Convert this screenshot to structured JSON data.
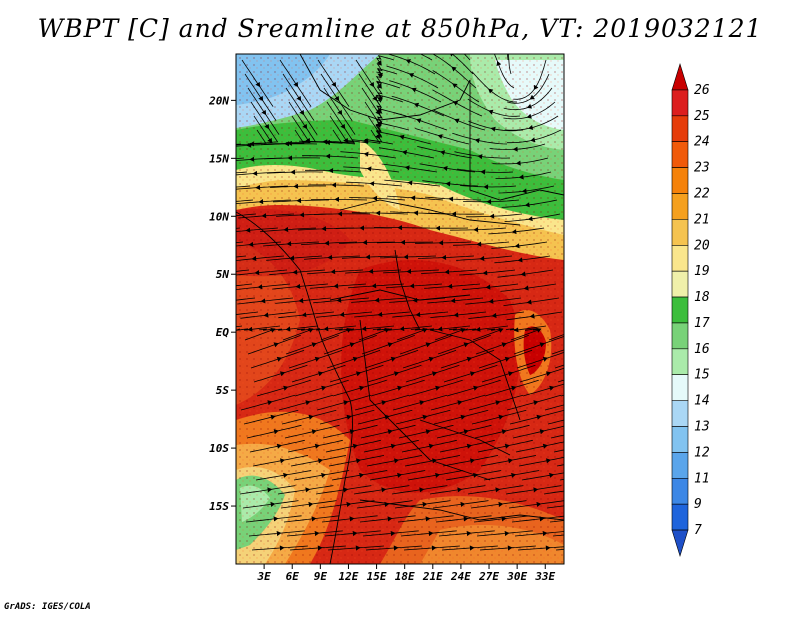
{
  "title": "WBPT [C] and Sreamline at 850hPa, VT: 2019032121",
  "credit": "GrADS: IGES/COLA",
  "map": {
    "lat_ticks": [
      "20N",
      "15N",
      "10N",
      "5N",
      "EQ",
      "5S",
      "10S",
      "15S"
    ],
    "lon_ticks": [
      "3E",
      "6E",
      "9E",
      "12E",
      "15E",
      "18E",
      "21E",
      "24E",
      "27E",
      "30E",
      "33E"
    ],
    "lat_range": [
      -20,
      24
    ],
    "lon_range": [
      0,
      35
    ]
  },
  "colorbar": {
    "levels": [
      "26",
      "25",
      "24",
      "23",
      "22",
      "21",
      "20",
      "19",
      "18",
      "17",
      "16",
      "15",
      "14",
      "13",
      "12",
      "11",
      "9",
      "7"
    ],
    "colors": [
      "#c80000",
      "#dc1e1e",
      "#e63c0a",
      "#f05a0a",
      "#f5820a",
      "#f5a01e",
      "#f5c350",
      "#fae68c",
      "#f0f0aa",
      "#3cbe3c",
      "#78d278",
      "#aaebaa",
      "#e6fafa",
      "#aad7f5",
      "#82c3f0",
      "#5aa5eb",
      "#3c87e6",
      "#1e64dc",
      "#1e50c8"
    ]
  }
}
